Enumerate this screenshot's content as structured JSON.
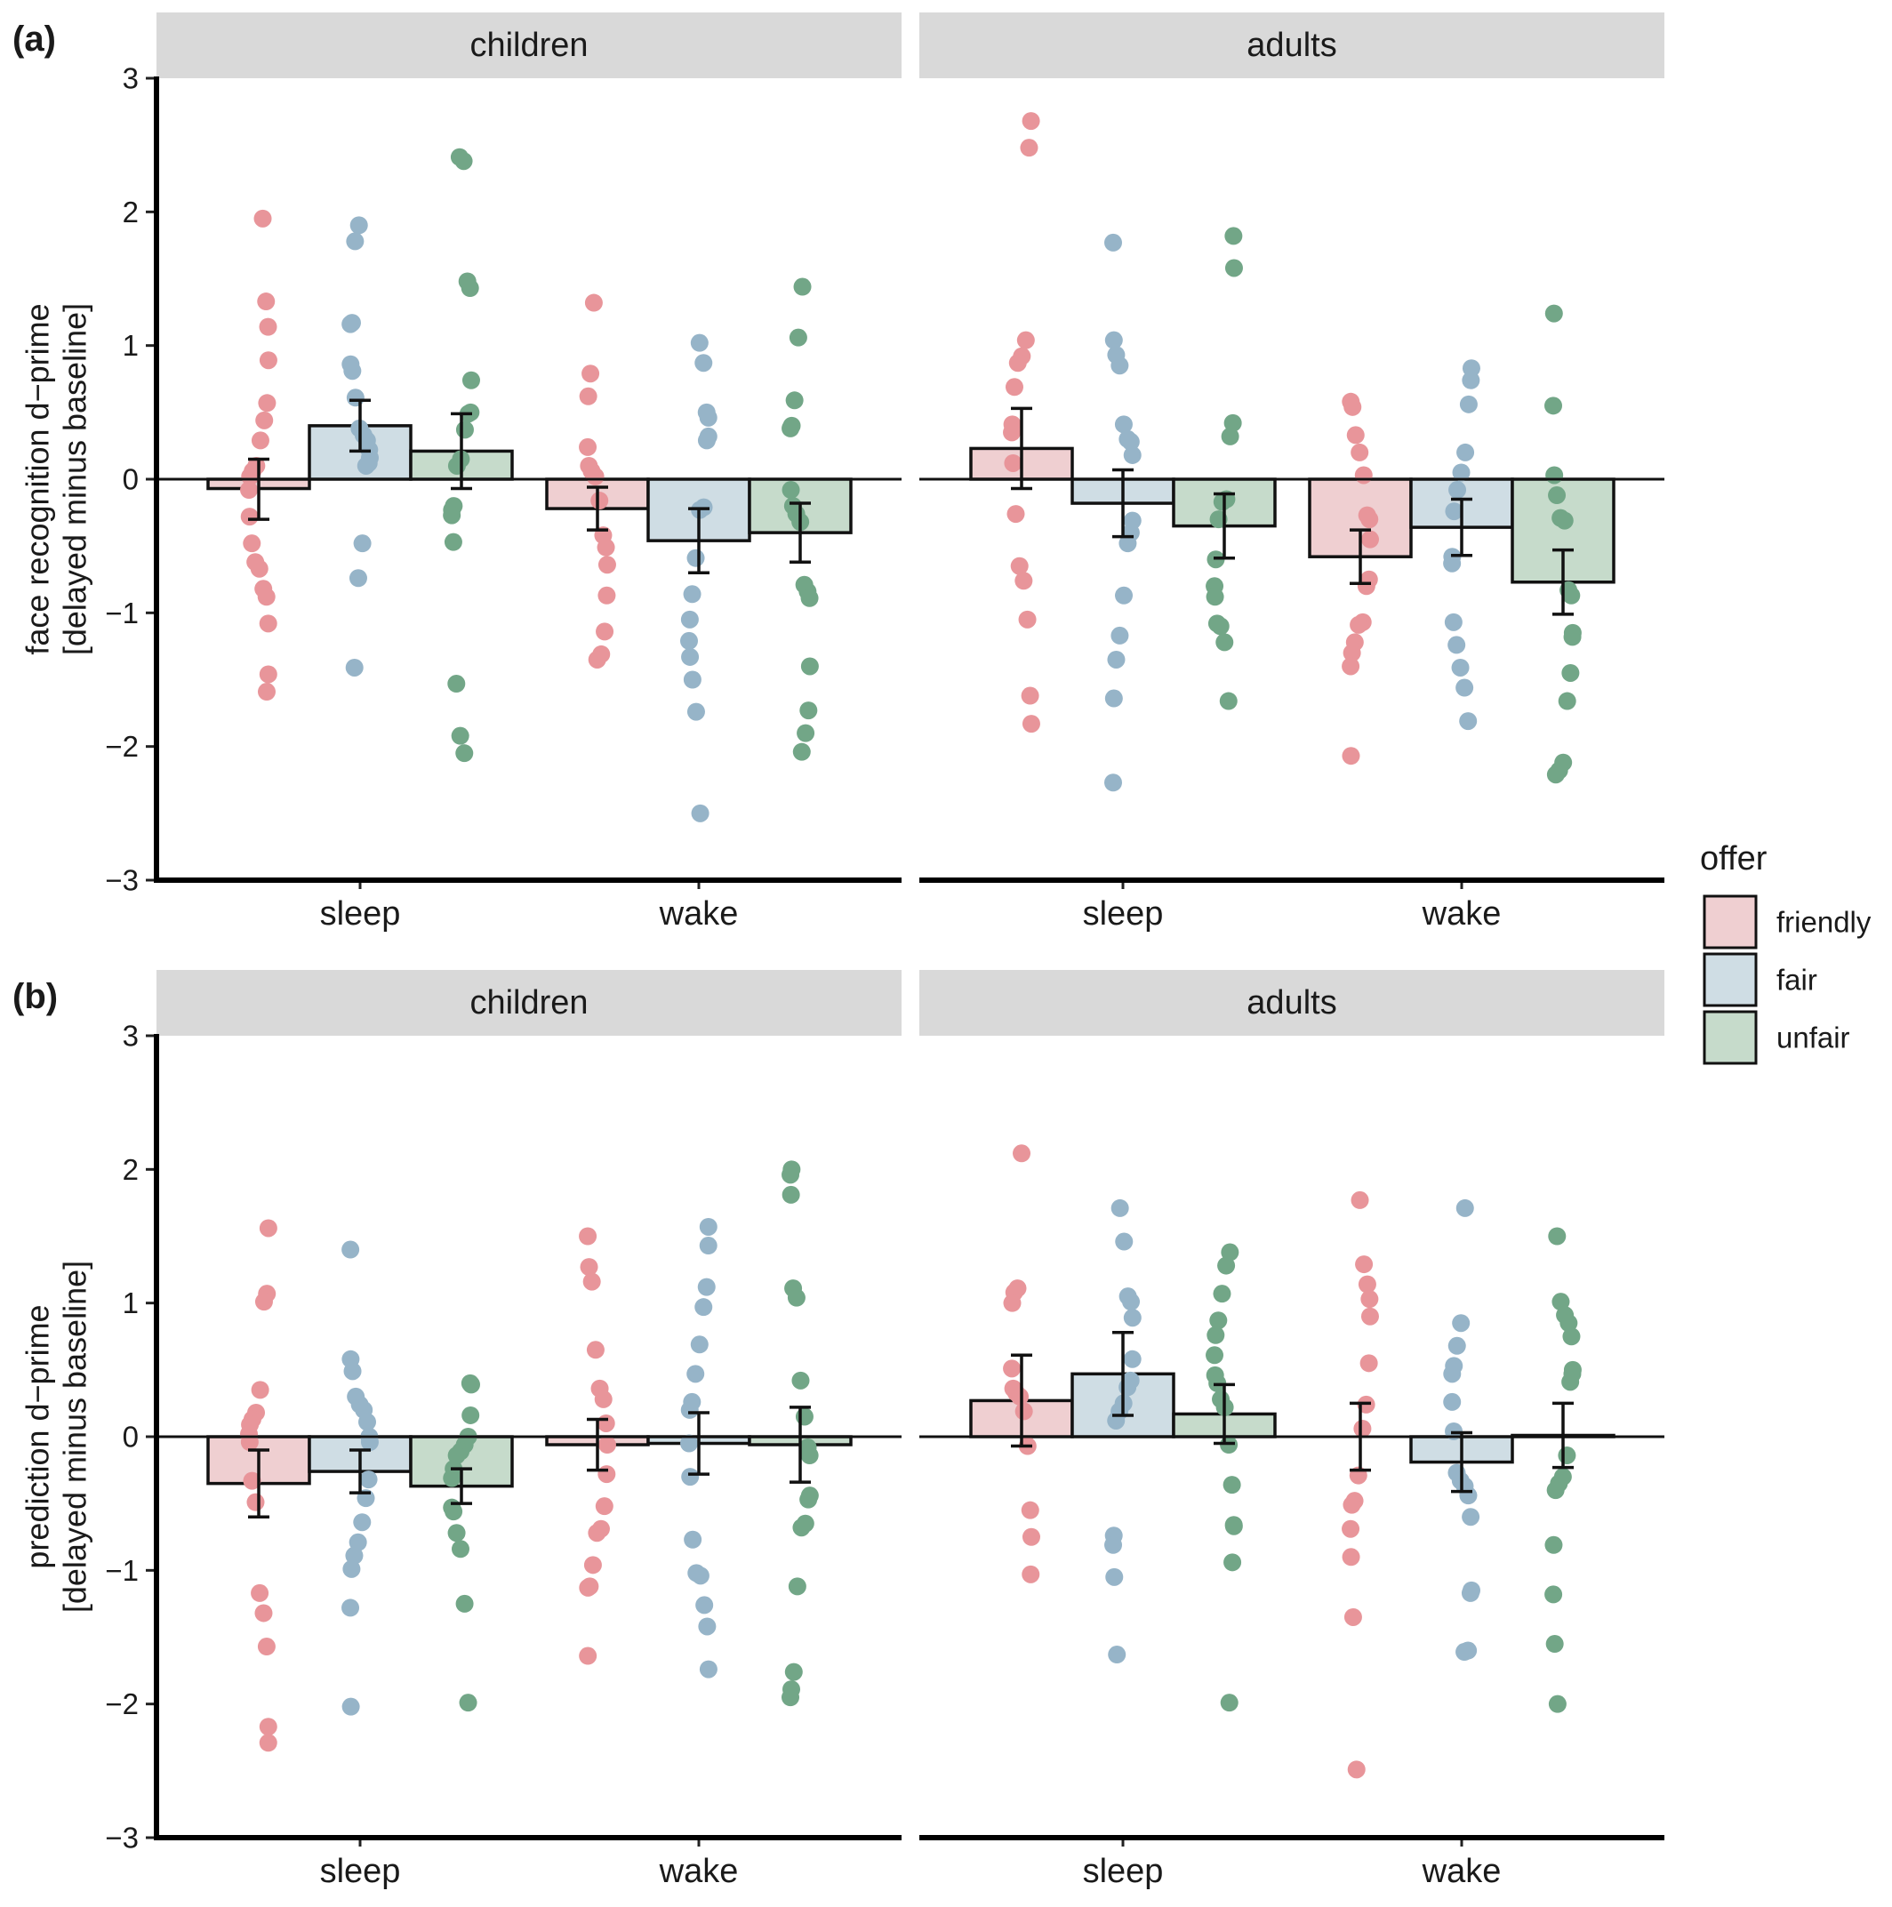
{
  "colors": {
    "friendly": "#e8959a",
    "fair": "#96b4c8",
    "unfair": "#72a687",
    "friendly_fill": "#efcfd1",
    "fair_fill": "#cfdde4",
    "unfair_fill": "#c6dbcb",
    "strip": "#d9d9d9"
  },
  "legend": {
    "title": "offer",
    "items": [
      "friendly",
      "fair",
      "unfair"
    ]
  },
  "chart_data": [
    {
      "type": "bar",
      "panel": "(a)",
      "ylabel_line1": "face recognition d−prime",
      "ylabel_line2": "[delayed minus baseline]",
      "ylim": [
        -3,
        3
      ],
      "yticks": [
        "−3",
        "−2",
        "−1",
        "0",
        "1",
        "2",
        "3"
      ],
      "facets": [
        {
          "name": "children",
          "groups": [
            {
              "condition": "sleep",
              "bars": [
                {
                  "offer": "friendly",
                  "mean": -0.07,
                  "err_low": -0.3,
                  "err_high": 0.15,
                  "points": [
                    1.95,
                    1.33,
                    1.14,
                    0.89,
                    0.57,
                    0.44,
                    0.29,
                    0.1,
                    0.06,
                    0.02,
                    -0.08,
                    -0.28,
                    -0.48,
                    -0.62,
                    -0.67,
                    -0.82,
                    -0.88,
                    -1.08,
                    -1.46,
                    -1.59
                  ]
                },
                {
                  "offer": "fair",
                  "mean": 0.4,
                  "err_low": 0.21,
                  "err_high": 0.59,
                  "points": [
                    1.9,
                    1.78,
                    1.17,
                    1.16,
                    0.86,
                    0.81,
                    0.61,
                    0.38,
                    0.33,
                    0.29,
                    0.22,
                    0.16,
                    0.12,
                    0.1,
                    -0.48,
                    -0.74,
                    -1.41
                  ]
                },
                {
                  "offer": "unfair",
                  "mean": 0.21,
                  "err_low": -0.07,
                  "err_high": 0.49,
                  "points": [
                    2.41,
                    2.38,
                    1.48,
                    1.43,
                    0.74,
                    0.5,
                    0.49,
                    0.37,
                    0.15,
                    0.1,
                    -0.2,
                    -0.23,
                    -0.27,
                    -0.47,
                    -1.53,
                    -1.92,
                    -2.05
                  ]
                }
              ]
            },
            {
              "condition": "wake",
              "bars": [
                {
                  "offer": "friendly",
                  "mean": -0.22,
                  "err_low": -0.38,
                  "err_high": -0.06,
                  "points": [
                    1.32,
                    0.79,
                    0.62,
                    0.24,
                    0.1,
                    0.06,
                    0.02,
                    -0.16,
                    -0.42,
                    -0.51,
                    -0.64,
                    -0.87,
                    -1.14,
                    -1.31,
                    -1.35
                  ]
                },
                {
                  "offer": "fair",
                  "mean": -0.46,
                  "err_low": -0.7,
                  "err_high": -0.22,
                  "points": [
                    1.02,
                    0.87,
                    0.5,
                    0.46,
                    0.32,
                    0.29,
                    -0.21,
                    -0.23,
                    -0.59,
                    -0.86,
                    -1.05,
                    -1.21,
                    -1.33,
                    -1.5,
                    -1.74,
                    -2.5
                  ]
                },
                {
                  "offer": "unfair",
                  "mean": -0.4,
                  "err_low": -0.62,
                  "err_high": -0.18,
                  "points": [
                    1.44,
                    1.06,
                    0.59,
                    0.4,
                    0.38,
                    -0.08,
                    -0.2,
                    -0.26,
                    -0.32,
                    -0.79,
                    -0.84,
                    -0.89,
                    -1.4,
                    -1.73,
                    -1.9,
                    -2.04
                  ]
                }
              ]
            }
          ]
        },
        {
          "name": "adults",
          "groups": [
            {
              "condition": "sleep",
              "bars": [
                {
                  "offer": "friendly",
                  "mean": 0.23,
                  "err_low": -0.07,
                  "err_high": 0.53,
                  "points": [
                    2.68,
                    2.48,
                    1.04,
                    0.92,
                    0.87,
                    0.69,
                    0.41,
                    0.35,
                    0.12,
                    -0.26,
                    -0.65,
                    -0.76,
                    -1.05,
                    -1.62,
                    -1.83
                  ]
                },
                {
                  "offer": "fair",
                  "mean": -0.18,
                  "err_low": -0.43,
                  "err_high": 0.07,
                  "points": [
                    1.77,
                    1.04,
                    0.93,
                    0.85,
                    0.41,
                    0.3,
                    0.28,
                    0.18,
                    -0.31,
                    -0.4,
                    -0.48,
                    -0.87,
                    -1.17,
                    -1.35,
                    -1.64,
                    -2.27
                  ]
                },
                {
                  "offer": "unfair",
                  "mean": -0.35,
                  "err_low": -0.59,
                  "err_high": -0.11,
                  "points": [
                    1.82,
                    1.58,
                    0.42,
                    0.32,
                    -0.15,
                    -0.17,
                    -0.3,
                    -0.6,
                    -0.8,
                    -0.88,
                    -1.08,
                    -1.1,
                    -1.22,
                    -1.66
                  ]
                }
              ]
            },
            {
              "condition": "wake",
              "bars": [
                {
                  "offer": "friendly",
                  "mean": -0.58,
                  "err_low": -0.78,
                  "err_high": -0.38,
                  "points": [
                    0.58,
                    0.54,
                    0.33,
                    0.2,
                    0.03,
                    -0.27,
                    -0.3,
                    -0.45,
                    -0.75,
                    -0.8,
                    -1.07,
                    -1.09,
                    -1.22,
                    -1.3,
                    -1.4,
                    -2.07
                  ]
                },
                {
                  "offer": "fair",
                  "mean": -0.36,
                  "err_low": -0.57,
                  "err_high": -0.15,
                  "points": [
                    0.83,
                    0.74,
                    0.56,
                    0.2,
                    0.05,
                    -0.08,
                    -0.24,
                    -0.58,
                    -0.63,
                    -1.07,
                    -1.24,
                    -1.41,
                    -1.56,
                    -1.81
                  ]
                },
                {
                  "offer": "unfair",
                  "mean": -0.77,
                  "err_low": -1.01,
                  "err_high": -0.53,
                  "points": [
                    1.24,
                    0.55,
                    0.03,
                    -0.12,
                    -0.29,
                    -0.31,
                    -0.83,
                    -0.87,
                    -1.15,
                    -1.18,
                    -1.45,
                    -1.66,
                    -2.12,
                    -2.18,
                    -2.21
                  ]
                }
              ]
            }
          ]
        }
      ]
    },
    {
      "type": "bar",
      "panel": "(b)",
      "ylabel_line1": "prediction d−prime",
      "ylabel_line2": "[delayed minus baseline]",
      "ylim": [
        -3,
        3
      ],
      "yticks": [
        "−3",
        "−2",
        "−1",
        "0",
        "1",
        "2",
        "3"
      ],
      "facets": [
        {
          "name": "children",
          "groups": [
            {
              "condition": "sleep",
              "bars": [
                {
                  "offer": "friendly",
                  "mean": -0.35,
                  "err_low": -0.6,
                  "err_high": -0.1,
                  "points": [
                    1.56,
                    1.07,
                    1.01,
                    0.35,
                    0.18,
                    0.13,
                    0.09,
                    0.02,
                    -0.04,
                    -0.33,
                    -0.49,
                    -1.17,
                    -1.32,
                    -1.57,
                    -2.17,
                    -2.29
                  ]
                },
                {
                  "offer": "fair",
                  "mean": -0.26,
                  "err_low": -0.42,
                  "err_high": -0.1,
                  "points": [
                    1.4,
                    0.58,
                    0.49,
                    0.3,
                    0.24,
                    0.2,
                    0.11,
                    0.0,
                    -0.04,
                    -0.32,
                    -0.46,
                    -0.64,
                    -0.79,
                    -0.89,
                    -0.99,
                    -1.28,
                    -2.02
                  ]
                },
                {
                  "offer": "unfair",
                  "mean": -0.37,
                  "err_low": -0.5,
                  "err_high": -0.24,
                  "points": [
                    0.4,
                    0.39,
                    0.16,
                    0.0,
                    -0.06,
                    -0.11,
                    -0.14,
                    -0.24,
                    -0.31,
                    -0.53,
                    -0.56,
                    -0.72,
                    -0.84,
                    -1.25,
                    -1.99
                  ]
                }
              ]
            },
            {
              "condition": "wake",
              "bars": [
                {
                  "offer": "friendly",
                  "mean": -0.06,
                  "err_low": -0.25,
                  "err_high": 0.13,
                  "points": [
                    1.5,
                    1.27,
                    1.16,
                    0.65,
                    0.36,
                    0.28,
                    0.1,
                    -0.06,
                    -0.28,
                    -0.52,
                    -0.69,
                    -0.72,
                    -0.96,
                    -1.12,
                    -1.13,
                    -1.64
                  ]
                },
                {
                  "offer": "fair",
                  "mean": -0.05,
                  "err_low": -0.28,
                  "err_high": 0.18,
                  "points": [
                    1.57,
                    1.43,
                    1.12,
                    0.97,
                    0.69,
                    0.47,
                    0.26,
                    0.2,
                    -0.05,
                    -0.3,
                    -0.77,
                    -1.02,
                    -1.04,
                    -1.26,
                    -1.42,
                    -1.74
                  ]
                },
                {
                  "offer": "unfair",
                  "mean": -0.06,
                  "err_low": -0.34,
                  "err_high": 0.22,
                  "points": [
                    2.0,
                    1.96,
                    1.81,
                    1.11,
                    1.04,
                    0.42,
                    0.15,
                    -0.08,
                    -0.14,
                    -0.44,
                    -0.47,
                    -0.65,
                    -0.68,
                    -1.12,
                    -1.76,
                    -1.89,
                    -1.95
                  ]
                }
              ]
            }
          ]
        },
        {
          "name": "adults",
          "groups": [
            {
              "condition": "sleep",
              "bars": [
                {
                  "offer": "friendly",
                  "mean": 0.27,
                  "err_low": -0.07,
                  "err_high": 0.61,
                  "points": [
                    2.12,
                    1.11,
                    1.08,
                    1.0,
                    0.51,
                    0.36,
                    0.33,
                    0.3,
                    0.19,
                    -0.07,
                    -0.55,
                    -0.75,
                    -1.03
                  ]
                },
                {
                  "offer": "fair",
                  "mean": 0.47,
                  "err_low": 0.16,
                  "err_high": 0.78,
                  "points": [
                    1.71,
                    1.46,
                    1.05,
                    1.01,
                    0.89,
                    0.58,
                    0.42,
                    0.37,
                    0.25,
                    0.19,
                    0.12,
                    -0.74,
                    -0.81,
                    -1.05,
                    -1.63
                  ]
                },
                {
                  "offer": "unfair",
                  "mean": 0.17,
                  "err_low": -0.05,
                  "err_high": 0.39,
                  "points": [
                    1.38,
                    1.28,
                    1.07,
                    0.87,
                    0.76,
                    0.61,
                    0.46,
                    0.4,
                    0.28,
                    0.22,
                    -0.06,
                    -0.36,
                    -0.66,
                    -0.67,
                    -0.94,
                    -1.99
                  ]
                }
              ]
            },
            {
              "condition": "wake",
              "bars": [
                {
                  "offer": "friendly",
                  "mean": 0.0,
                  "err_low": -0.25,
                  "err_high": 0.25,
                  "points": [
                    1.77,
                    1.29,
                    1.14,
                    1.03,
                    0.9,
                    0.55,
                    0.24,
                    0.06,
                    -0.29,
                    -0.48,
                    -0.51,
                    -0.69,
                    -0.9,
                    -1.35,
                    -2.49
                  ]
                },
                {
                  "offer": "fair",
                  "mean": -0.19,
                  "err_low": -0.41,
                  "err_high": 0.03,
                  "points": [
                    1.71,
                    0.85,
                    0.68,
                    0.53,
                    0.47,
                    0.26,
                    0.04,
                    -0.27,
                    -0.33,
                    -0.37,
                    -0.44,
                    -0.6,
                    -1.15,
                    -1.17,
                    -1.6,
                    -1.61
                  ]
                },
                {
                  "offer": "unfair",
                  "mean": 0.01,
                  "err_low": -0.23,
                  "err_high": 0.25,
                  "points": [
                    1.5,
                    1.01,
                    0.91,
                    0.85,
                    0.75,
                    0.5,
                    0.47,
                    0.41,
                    -0.14,
                    -0.3,
                    -0.35,
                    -0.4,
                    -0.81,
                    -1.18,
                    -1.55,
                    -2.0
                  ]
                }
              ]
            }
          ]
        }
      ]
    }
  ]
}
